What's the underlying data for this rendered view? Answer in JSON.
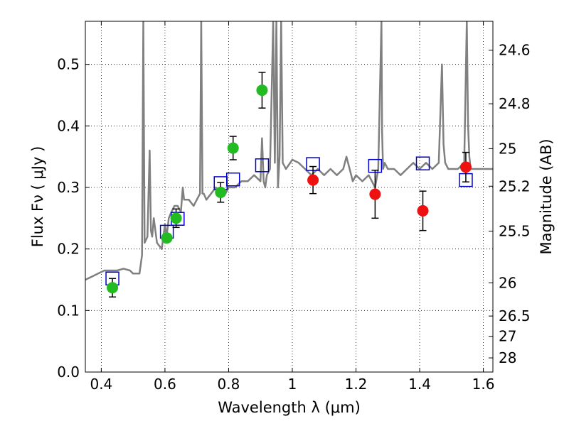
{
  "chart_data": {
    "type": "scatter",
    "xlabel": "Wavelength  λ (μm)",
    "ylabel": "Flux  Fν  ( μJy )",
    "y2label": "Magnitude (AB)",
    "xlim": [
      0.35,
      1.63
    ],
    "ylim": [
      0.0,
      0.57
    ],
    "grid": true,
    "x_ticks": [
      0.4,
      0.6,
      0.8,
      1.0,
      1.2,
      1.4,
      1.6
    ],
    "x_tick_labels": [
      "0.4",
      "0.6",
      "0.8",
      "1",
      "1.2",
      "1.4",
      "1.6"
    ],
    "y_ticks": [
      0.0,
      0.1,
      0.2,
      0.3,
      0.4,
      0.5
    ],
    "y_tick_labels": [
      "0.0",
      "0.1",
      "0.2",
      "0.3",
      "0.4",
      "0.5"
    ],
    "y2_ticks": [
      {
        "flux": 0.523,
        "label": "24.6"
      },
      {
        "flux": 0.436,
        "label": "24.8"
      },
      {
        "flux": 0.363,
        "label": "25"
      },
      {
        "flux": 0.302,
        "label": "25.2"
      },
      {
        "flux": 0.229,
        "label": "25.5"
      },
      {
        "flux": 0.145,
        "label": "26"
      },
      {
        "flux": 0.091,
        "label": "26.5"
      },
      {
        "flux": 0.058,
        "label": "27"
      },
      {
        "flux": 0.023,
        "label": "28"
      }
    ],
    "colors": {
      "spectrum": "#808080",
      "green": "#22bb22",
      "red": "#ee1111",
      "model_box": "#0000cc",
      "error_bar": "#000000"
    },
    "series": [
      {
        "kind": "line",
        "x": [
          0.35,
          0.37,
          0.39,
          0.41,
          0.43,
          0.45,
          0.47,
          0.49,
          0.5,
          0.51,
          0.52,
          0.528,
          0.532,
          0.536,
          0.545,
          0.552,
          0.556,
          0.56,
          0.565,
          0.575,
          0.59,
          0.6,
          0.605,
          0.612,
          0.62,
          0.63,
          0.64,
          0.65,
          0.656,
          0.66,
          0.675,
          0.69,
          0.7,
          0.71,
          0.714,
          0.718,
          0.722,
          0.73,
          0.745,
          0.76,
          0.78,
          0.79,
          0.8,
          0.82,
          0.84,
          0.86,
          0.88,
          0.9,
          0.905,
          0.91,
          0.915,
          0.92,
          0.93,
          0.94,
          0.945,
          0.95,
          0.955,
          0.96,
          0.965,
          0.97,
          0.98,
          1.0,
          1.02,
          1.04,
          1.06,
          1.08,
          1.1,
          1.12,
          1.14,
          1.16,
          1.17,
          1.18,
          1.19,
          1.2,
          1.22,
          1.24,
          1.26,
          1.27,
          1.28,
          1.282,
          1.285,
          1.29,
          1.3,
          1.32,
          1.34,
          1.36,
          1.38,
          1.4,
          1.42,
          1.44,
          1.46,
          1.47,
          1.475,
          1.48,
          1.49,
          1.5,
          1.52,
          1.54,
          1.548,
          1.552,
          1.556,
          1.56,
          1.58,
          1.6,
          1.63
        ],
        "y": [
          0.15,
          0.155,
          0.16,
          0.165,
          0.165,
          0.165,
          0.168,
          0.165,
          0.16,
          0.16,
          0.16,
          0.19,
          0.57,
          0.21,
          0.22,
          0.36,
          0.23,
          0.22,
          0.25,
          0.21,
          0.2,
          0.24,
          0.22,
          0.25,
          0.26,
          0.27,
          0.27,
          0.26,
          0.3,
          0.28,
          0.28,
          0.27,
          0.28,
          0.29,
          0.57,
          0.29,
          0.29,
          0.28,
          0.29,
          0.3,
          0.29,
          0.29,
          0.3,
          0.3,
          0.31,
          0.31,
          0.32,
          0.31,
          0.38,
          0.31,
          0.3,
          0.32,
          0.33,
          0.57,
          0.34,
          0.57,
          0.3,
          0.35,
          0.57,
          0.34,
          0.33,
          0.345,
          0.34,
          0.33,
          0.32,
          0.33,
          0.32,
          0.33,
          0.32,
          0.33,
          0.35,
          0.33,
          0.31,
          0.32,
          0.31,
          0.32,
          0.3,
          0.33,
          0.57,
          0.39,
          0.33,
          0.34,
          0.33,
          0.33,
          0.32,
          0.33,
          0.34,
          0.33,
          0.34,
          0.33,
          0.34,
          0.5,
          0.37,
          0.34,
          0.33,
          0.33,
          0.33,
          0.34,
          0.57,
          0.4,
          0.35,
          0.33,
          0.33,
          0.33,
          0.33
        ]
      },
      {
        "kind": "points-with-errors",
        "color": "green",
        "points": [
          {
            "x": 0.435,
            "y": 0.137,
            "err": 0.015
          },
          {
            "x": 0.606,
            "y": 0.218,
            "err": 0.0
          },
          {
            "x": 0.635,
            "y": 0.25,
            "err": 0.015
          },
          {
            "x": 0.775,
            "y": 0.292,
            "err": 0.016
          },
          {
            "x": 0.814,
            "y": 0.364,
            "err": 0.019
          },
          {
            "x": 0.905,
            "y": 0.458,
            "err": 0.029
          }
        ]
      },
      {
        "kind": "points-with-errors",
        "color": "red",
        "points": [
          {
            "x": 1.065,
            "y": 0.312,
            "err": 0.022
          },
          {
            "x": 1.26,
            "y": 0.289,
            "err": 0.039
          },
          {
            "x": 1.41,
            "y": 0.262,
            "err": 0.032
          },
          {
            "x": 1.545,
            "y": 0.333,
            "err": 0.024
          }
        ]
      },
      {
        "kind": "open-squares",
        "color": "model_box",
        "points": [
          {
            "x": 0.435,
            "y": 0.152
          },
          {
            "x": 0.606,
            "y": 0.228
          },
          {
            "x": 0.64,
            "y": 0.249
          },
          {
            "x": 0.775,
            "y": 0.307
          },
          {
            "x": 0.814,
            "y": 0.313
          },
          {
            "x": 0.905,
            "y": 0.336
          },
          {
            "x": 1.065,
            "y": 0.338
          },
          {
            "x": 1.26,
            "y": 0.335
          },
          {
            "x": 1.41,
            "y": 0.339
          },
          {
            "x": 1.545,
            "y": 0.312
          }
        ]
      }
    ]
  }
}
